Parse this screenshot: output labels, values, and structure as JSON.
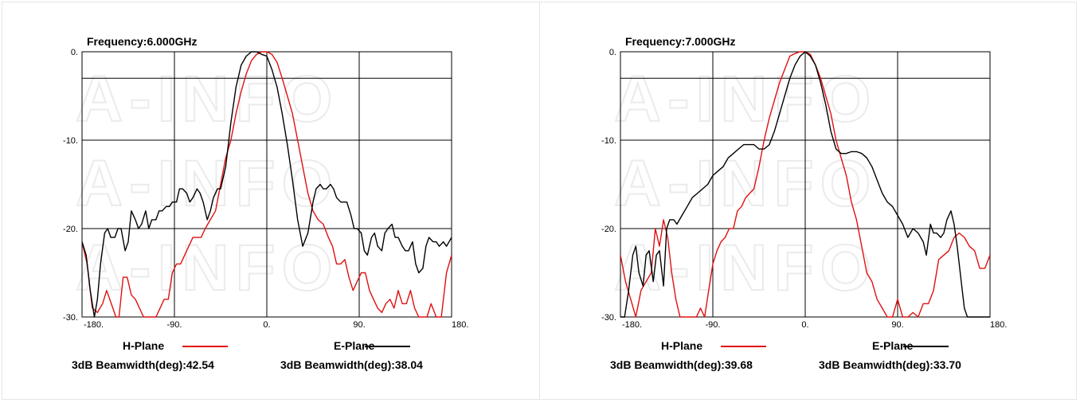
{
  "chart_data": [
    {
      "type": "line",
      "title": "Frequency:6.000GHz",
      "xlim": [
        -180,
        180
      ],
      "ylim": [
        -30,
        0
      ],
      "x_ticks": [
        "-180.",
        "-90.",
        "0.",
        "90.",
        "180."
      ],
      "y_ticks": [
        "0.",
        "-10.",
        "-20.",
        "-30."
      ],
      "grid": true,
      "legend": "bottom",
      "series": [
        {
          "name": "H-Plane",
          "beamwidth_label": "3dB Beamwidth(deg):42.54",
          "color": "#e01010",
          "x": [
            -180,
            -175,
            -170,
            -165,
            -160,
            -156,
            -150,
            -147,
            -144,
            -140,
            -136,
            -132,
            -128,
            -120,
            -116,
            -112,
            -108,
            -104,
            -100,
            -96,
            -92,
            -88,
            -84,
            -80,
            -76,
            -72,
            -68,
            -64,
            -60,
            -55,
            -50,
            -45,
            -40,
            -35,
            -30,
            -25,
            -20,
            -15,
            -10,
            -5,
            0,
            5,
            10,
            15,
            20,
            25,
            30,
            35,
            40,
            45,
            50,
            55,
            60,
            64,
            68,
            72,
            76,
            80,
            84,
            88,
            92,
            96,
            100,
            104,
            108,
            112,
            116,
            120,
            124,
            128,
            132,
            136,
            140,
            144,
            148,
            152,
            156,
            160,
            165,
            170,
            175,
            180
          ],
          "y": [
            -21.5,
            -24,
            -29,
            -29.5,
            -28.5,
            -27,
            -29,
            -30,
            -30,
            -25.5,
            -25.5,
            -27.5,
            -28,
            -30,
            -30,
            -30,
            -30,
            -29,
            -28,
            -28,
            -25,
            -24,
            -24,
            -23,
            -22,
            -21,
            -21,
            -21,
            -20,
            -19,
            -18,
            -15,
            -12,
            -10,
            -7,
            -4.5,
            -2.5,
            -1,
            -0.3,
            0,
            0,
            -0.3,
            -1.2,
            -3,
            -5,
            -7,
            -10,
            -13,
            -16,
            -18,
            -19,
            -19.5,
            -21,
            -22,
            -24,
            -24,
            -23.5,
            -25.5,
            -27,
            -26,
            -25,
            -25,
            -27,
            -28,
            -29,
            -29.5,
            -28.5,
            -28,
            -29,
            -27,
            -28.5,
            -28.5,
            -27,
            -29,
            -30,
            -30,
            -30,
            -28.5,
            -30,
            -30,
            -25,
            -23
          ]
        },
        {
          "name": "E-Plane",
          "beamwidth_label": "3dB Beamwidth(deg):38.04",
          "color": "#000000",
          "x": [
            -180,
            -176,
            -172,
            -168,
            -165,
            -162,
            -158,
            -155,
            -152,
            -148,
            -145,
            -142,
            -138,
            -135,
            -132,
            -128,
            -125,
            -122,
            -118,
            -115,
            -112,
            -108,
            -105,
            -102,
            -98,
            -95,
            -92,
            -88,
            -85,
            -82,
            -78,
            -75,
            -72,
            -68,
            -65,
            -62,
            -58,
            -55,
            -52,
            -48,
            -45,
            -40,
            -35,
            -30,
            -25,
            -20,
            -15,
            -10,
            -5,
            0,
            5,
            10,
            15,
            20,
            25,
            30,
            35,
            40,
            45,
            48,
            52,
            55,
            58,
            62,
            65,
            68,
            72,
            75,
            78,
            82,
            85,
            88,
            92,
            95,
            98,
            102,
            105,
            108,
            112,
            115,
            118,
            122,
            125,
            128,
            132,
            135,
            138,
            142,
            145,
            148,
            152,
            155,
            158,
            162,
            165,
            168,
            172,
            175,
            180
          ],
          "y": [
            -21.5,
            -23,
            -27,
            -30,
            -28,
            -24,
            -20.5,
            -20,
            -21,
            -21,
            -20,
            -20,
            -22.5,
            -21.5,
            -18,
            -19,
            -20,
            -19.5,
            -18,
            -20,
            -19,
            -19,
            -18,
            -18,
            -17.5,
            -17.5,
            -17,
            -17,
            -15.5,
            -15.5,
            -16,
            -17,
            -16.5,
            -15.5,
            -16,
            -17,
            -19,
            -18,
            -16.5,
            -15.5,
            -15.5,
            -13,
            -8,
            -4,
            -1.5,
            -0.5,
            0,
            0,
            -0.3,
            -0.5,
            -2,
            -4,
            -7,
            -10.5,
            -14.5,
            -19,
            -22,
            -20.5,
            -17,
            -15.5,
            -15,
            -15.5,
            -15.5,
            -15,
            -15.5,
            -16.5,
            -17,
            -17,
            -17,
            -18.5,
            -20,
            -20,
            -20.5,
            -22.5,
            -23,
            -21,
            -20.5,
            -22,
            -22.5,
            -20.5,
            -20,
            -19.5,
            -21,
            -21,
            -22,
            -22.5,
            -22.5,
            -21.5,
            -24,
            -25,
            -24.5,
            -22,
            -21,
            -21.5,
            -21.5,
            -22,
            -21.5,
            -22,
            -21
          ]
        }
      ]
    },
    {
      "type": "line",
      "title": "Frequency:7.000GHz",
      "xlim": [
        -180,
        180
      ],
      "ylim": [
        -30,
        0
      ],
      "x_ticks": [
        "-180.",
        "-90.",
        "0.",
        "90.",
        "180."
      ],
      "y_ticks": [
        "0.",
        "-10.",
        "-20.",
        "-30."
      ],
      "grid": true,
      "legend": "bottom",
      "series": [
        {
          "name": "H-Plane",
          "beamwidth_label": "3dB Beamwidth(deg):39.68",
          "color": "#e01010",
          "x": [
            -180,
            -175,
            -170,
            -165,
            -160,
            -155,
            -150,
            -146,
            -142,
            -138,
            -134,
            -130,
            -126,
            -122,
            -118,
            -114,
            -110,
            -106,
            -102,
            -98,
            -94,
            -90,
            -86,
            -82,
            -78,
            -74,
            -70,
            -66,
            -62,
            -58,
            -54,
            -50,
            -45,
            -40,
            -35,
            -30,
            -25,
            -20,
            -15,
            -10,
            -5,
            0,
            5,
            10,
            15,
            20,
            25,
            30,
            35,
            40,
            45,
            50,
            55,
            60,
            65,
            70,
            75,
            80,
            85,
            90,
            95,
            100,
            105,
            110,
            115,
            120,
            125,
            130,
            135,
            140,
            145,
            150,
            155,
            160,
            165,
            170,
            175,
            180
          ],
          "y": [
            -23,
            -26,
            -28,
            -30,
            -27,
            -26,
            -25,
            -20,
            -22,
            -19,
            -21,
            -25,
            -28,
            -30,
            -30,
            -30,
            -30,
            -30,
            -29,
            -30,
            -27,
            -24,
            -22.5,
            -21.5,
            -21,
            -20,
            -20,
            -18,
            -17.5,
            -16.5,
            -16,
            -15.5,
            -13,
            -10,
            -7.5,
            -5.5,
            -3.5,
            -2,
            -0.5,
            -0.2,
            0,
            0,
            -0.3,
            -1.5,
            -3,
            -5,
            -7,
            -10,
            -12,
            -14,
            -17,
            -19,
            -22,
            -25,
            -26,
            -28,
            -29,
            -30,
            -30,
            -28,
            -30,
            -30,
            -29.5,
            -30,
            -28.5,
            -28.5,
            -27,
            -23.5,
            -23,
            -22.5,
            -21,
            -20.5,
            -21,
            -22,
            -22.5,
            -24.5,
            -24.5,
            -23
          ]
        },
        {
          "name": "E-Plane",
          "beamwidth_label": "3dB Beamwidth(deg):33.70",
          "color": "#000000",
          "x": [
            -180,
            -176,
            -172,
            -168,
            -165,
            -162,
            -158,
            -155,
            -152,
            -148,
            -145,
            -142,
            -138,
            -135,
            -132,
            -128,
            -125,
            -120,
            -115,
            -110,
            -105,
            -100,
            -95,
            -90,
            -85,
            -80,
            -75,
            -70,
            -65,
            -60,
            -55,
            -50,
            -45,
            -40,
            -35,
            -30,
            -25,
            -20,
            -15,
            -10,
            -5,
            0,
            5,
            10,
            15,
            20,
            25,
            30,
            35,
            40,
            45,
            50,
            55,
            60,
            65,
            70,
            75,
            80,
            85,
            90,
            95,
            100,
            105,
            110,
            115,
            118,
            122,
            125,
            128,
            132,
            135,
            138,
            142,
            145,
            148,
            152,
            155,
            158,
            162,
            165,
            168,
            172,
            175,
            180
          ],
          "y": [
            -30,
            -30,
            -27,
            -23,
            -22,
            -25,
            -26.5,
            -23,
            -22.5,
            -26,
            -23,
            -22.5,
            -26.5,
            -20,
            -19,
            -19,
            -19.5,
            -18.5,
            -17.5,
            -16.5,
            -16,
            -15.5,
            -15,
            -14,
            -13.5,
            -13,
            -12,
            -11.5,
            -11,
            -10.5,
            -10.5,
            -10.5,
            -11,
            -11,
            -10.5,
            -9,
            -7,
            -5,
            -3,
            -1.5,
            -0.5,
            0,
            -0.5,
            -1.5,
            -3.5,
            -6,
            -9,
            -11,
            -11.5,
            -11.5,
            -11.3,
            -11.3,
            -11.5,
            -12,
            -13,
            -14.5,
            -16,
            -17,
            -17.5,
            -18.5,
            -19.5,
            -21,
            -20,
            -20.5,
            -21.5,
            -23,
            -19.5,
            -20.5,
            -20.5,
            -21,
            -20.5,
            -19,
            -18,
            -19.5,
            -22,
            -26,
            -29,
            -30,
            -30,
            -30,
            -30,
            -30,
            -30,
            -30
          ]
        }
      ]
    }
  ]
}
